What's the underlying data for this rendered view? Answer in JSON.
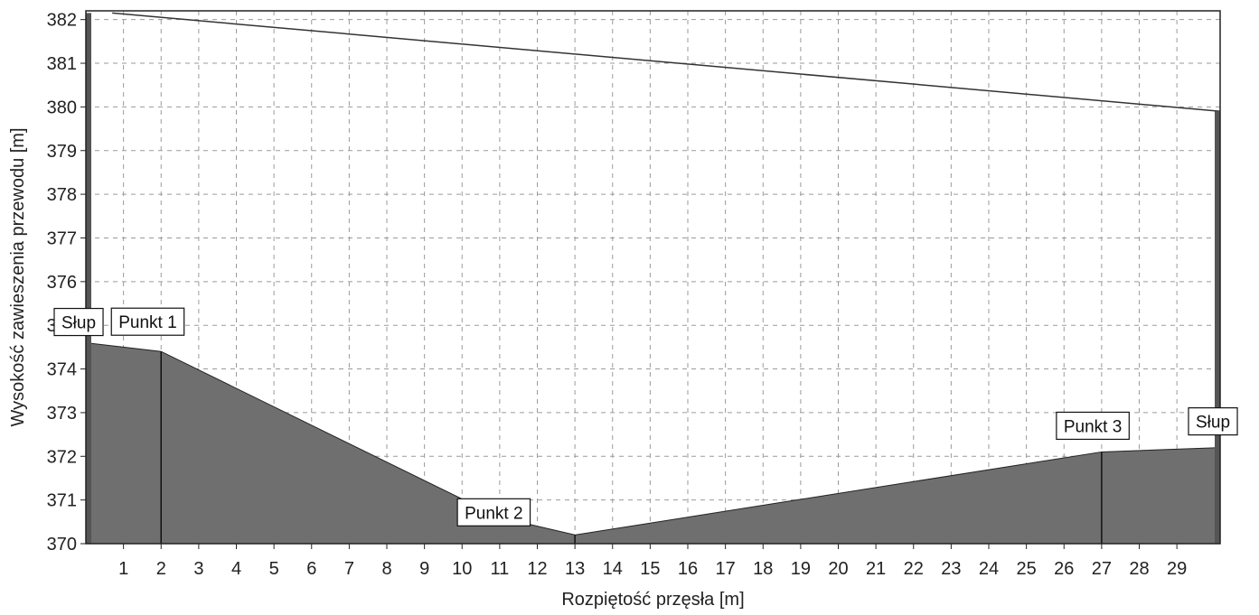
{
  "chart_data": {
    "type": "area",
    "xlabel": "Rozpiętość przęsła [m]",
    "ylabel": "Wysokość zawieszenia przewodu [m]",
    "xlim": [
      0,
      30.15
    ],
    "ylim": [
      370,
      382.2
    ],
    "x_ticks": [
      "1",
      "2",
      "3",
      "4",
      "5",
      "6",
      "7",
      "8",
      "9",
      "10",
      "11",
      "12",
      "13",
      "14",
      "15",
      "16",
      "17",
      "18",
      "19",
      "20",
      "21",
      "22",
      "23",
      "24",
      "25",
      "26",
      "27",
      "28",
      "29"
    ],
    "y_ticks": [
      "370",
      "371",
      "372",
      "373",
      "374",
      "375",
      "376",
      "377",
      "378",
      "379",
      "380",
      "381",
      "382"
    ],
    "grid": true,
    "conductor_line": {
      "x": [
        0.7,
        30.15
      ],
      "y": [
        382.15,
        379.9
      ]
    },
    "terrain": {
      "x": [
        0,
        2,
        11,
        13,
        27,
        30.15
      ],
      "y": [
        374.6,
        374.4,
        370.6,
        370.2,
        372.1,
        372.2
      ]
    },
    "points": [
      {
        "label": "Słup",
        "x": 0,
        "y": 374.6
      },
      {
        "label": "Punkt 1",
        "x": 2,
        "y": 374.4
      },
      {
        "label": "Punkt 2",
        "x": 13,
        "y": 370.2
      },
      {
        "label": "Punkt 3",
        "x": 27,
        "y": 372.1
      },
      {
        "label": "Słup",
        "x": 30.15,
        "y": 372.2
      }
    ],
    "colors": {
      "terrain_fill": "#6f6f6f",
      "conductor": "#333333",
      "pole": "#555555",
      "grid": "#9a9a9a"
    }
  }
}
